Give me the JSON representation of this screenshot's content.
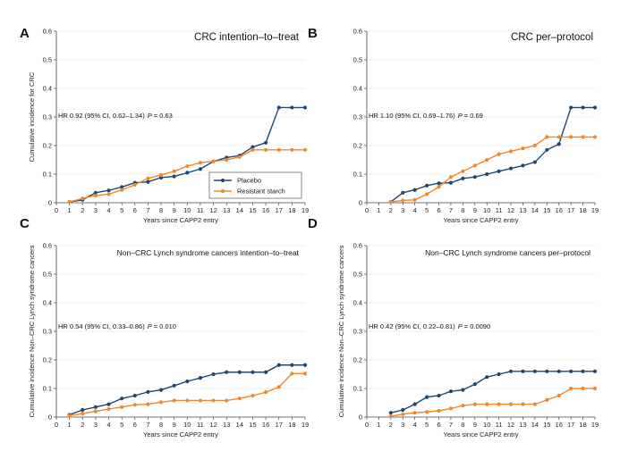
{
  "legend": {
    "placebo": "Placebo",
    "starch": "Resistant starch"
  },
  "colors": {
    "placebo": "#23466b",
    "starch": "#f0882f",
    "grid": "#e9e9e9",
    "axis": "#444444"
  },
  "chart_data": [
    {
      "type": "line",
      "letter": "A",
      "title": "CRC intention–to–treat",
      "ylabel": "Cumulative incidence for CRC",
      "xlabel": "Years since CAPP2 entry",
      "hr_text": "HR 0.92 (95% CI, 0.62–1.34)",
      "p_label": "P",
      "p_value": "= 0.63",
      "x_ticks": [
        "0",
        "1",
        "2",
        "3",
        "4",
        "5",
        "6",
        "7",
        "8",
        "9",
        "10",
        "11",
        "12",
        "13",
        "14",
        "15",
        "16",
        "17",
        "18",
        "19"
      ],
      "y_ticks": [
        "0",
        "0.1",
        "0.2",
        "0.3",
        "0.4",
        "0.5",
        "0.6"
      ],
      "xlim": [
        0,
        19
      ],
      "ylim": [
        0,
        0.6
      ],
      "series": [
        {
          "name": "Placebo",
          "x": [
            1,
            2,
            3,
            4,
            5,
            6,
            7,
            8,
            9,
            10,
            11,
            12,
            13,
            14,
            15,
            16,
            17,
            18,
            19
          ],
          "y": [
            0.003,
            0.01,
            0.035,
            0.043,
            0.055,
            0.07,
            0.073,
            0.088,
            0.092,
            0.105,
            0.118,
            0.145,
            0.158,
            0.165,
            0.195,
            0.21,
            0.333,
            0.333,
            0.333
          ]
        },
        {
          "name": "Resistant starch",
          "x": [
            1,
            2,
            3,
            4,
            5,
            6,
            7,
            8,
            9,
            10,
            11,
            12,
            13,
            14,
            15,
            16,
            17,
            18,
            19
          ],
          "y": [
            0.003,
            0.015,
            0.025,
            0.03,
            0.045,
            0.063,
            0.085,
            0.097,
            0.11,
            0.128,
            0.14,
            0.145,
            0.15,
            0.16,
            0.185,
            0.185,
            0.185,
            0.185,
            0.185
          ]
        }
      ]
    },
    {
      "type": "line",
      "letter": "B",
      "title": "CRC per–protocol",
      "ylabel": "",
      "xlabel": "Years since CAPP2 entry",
      "hr_text": "HR 1.10 (95% CI, 0.69–1.76)",
      "p_label": "P",
      "p_value": "= 0.69",
      "x_ticks": [
        "0",
        "1",
        "2",
        "3",
        "4",
        "5",
        "6",
        "7",
        "8",
        "9",
        "10",
        "11",
        "12",
        "13",
        "14",
        "15",
        "16",
        "17",
        "18",
        "19"
      ],
      "y_ticks": [
        "0",
        "0.1",
        "0.2",
        "0.3",
        "0.4",
        "0.5",
        "0.6"
      ],
      "xlim": [
        0,
        19
      ],
      "ylim": [
        0,
        0.6
      ],
      "series": [
        {
          "name": "Placebo",
          "x": [
            2,
            3,
            4,
            5,
            6,
            7,
            8,
            9,
            10,
            11,
            12,
            13,
            14,
            15,
            16,
            17,
            18,
            19
          ],
          "y": [
            0.003,
            0.035,
            0.045,
            0.06,
            0.068,
            0.07,
            0.085,
            0.09,
            0.1,
            0.11,
            0.12,
            0.13,
            0.142,
            0.185,
            0.205,
            0.333,
            0.333,
            0.333
          ]
        },
        {
          "name": "Resistant starch",
          "x": [
            2,
            3,
            4,
            5,
            6,
            7,
            8,
            9,
            10,
            11,
            12,
            13,
            14,
            15,
            16,
            17,
            18,
            19
          ],
          "y": [
            0.003,
            0.008,
            0.01,
            0.03,
            0.055,
            0.09,
            0.11,
            0.13,
            0.15,
            0.17,
            0.18,
            0.19,
            0.2,
            0.23,
            0.23,
            0.23,
            0.23,
            0.23
          ]
        }
      ]
    },
    {
      "type": "line",
      "letter": "C",
      "title": "Non–CRC Lynch syndrome cancers intention–to–treat",
      "ylabel": "Cumulative incidence Non–CRC Lynch syndrome cancers",
      "xlabel": "Years since CAPP2 entry",
      "hr_text": "HR 0.54 (95% CI, 0.33–0.86)",
      "p_label": "P",
      "p_value": "= 0.010",
      "x_ticks": [
        "0",
        "1",
        "2",
        "3",
        "4",
        "5",
        "6",
        "7",
        "8",
        "9",
        "10",
        "11",
        "12",
        "13",
        "14",
        "15",
        "16",
        "17",
        "18",
        "19"
      ],
      "y_ticks": [
        "0",
        "0.1",
        "0.2",
        "0.3",
        "0.4",
        "0.5",
        "0.6"
      ],
      "xlim": [
        0,
        19
      ],
      "ylim": [
        0,
        0.6
      ],
      "series": [
        {
          "name": "Placebo",
          "x": [
            1,
            2,
            3,
            4,
            5,
            6,
            7,
            8,
            9,
            10,
            11,
            12,
            13,
            14,
            15,
            16,
            17,
            18,
            19
          ],
          "y": [
            0.008,
            0.025,
            0.035,
            0.045,
            0.065,
            0.075,
            0.088,
            0.095,
            0.11,
            0.125,
            0.137,
            0.15,
            0.157,
            0.157,
            0.157,
            0.157,
            0.182,
            0.182,
            0.182
          ]
        },
        {
          "name": "Resistant starch",
          "x": [
            1,
            2,
            3,
            4,
            5,
            6,
            7,
            8,
            9,
            10,
            11,
            12,
            13,
            14,
            15,
            16,
            17,
            18,
            19
          ],
          "y": [
            0.005,
            0.012,
            0.02,
            0.028,
            0.035,
            0.043,
            0.045,
            0.052,
            0.058,
            0.058,
            0.058,
            0.058,
            0.058,
            0.065,
            0.075,
            0.087,
            0.105,
            0.152,
            0.152
          ]
        }
      ]
    },
    {
      "type": "line",
      "letter": "D",
      "title": "Non–CRC Lynch syndrome cancers per–protocol",
      "ylabel": "Cumulative incidence Non–CRC Lynch syndrome cancers",
      "xlabel": "Years since CAPP2 entry",
      "hr_text": "HR 0.42 (95% CI, 0.22–0.81)",
      "p_label": "P",
      "p_value": "= 0.0090",
      "x_ticks": [
        "0",
        "1",
        "2",
        "3",
        "4",
        "5",
        "6",
        "7",
        "8",
        "9",
        "10",
        "11",
        "12",
        "13",
        "14",
        "15",
        "16",
        "17",
        "18",
        "19"
      ],
      "y_ticks": [
        "0",
        "0.1",
        "0.2",
        "0.3",
        "0.4",
        "0.5",
        "0.6"
      ],
      "xlim": [
        0,
        19
      ],
      "ylim": [
        0,
        0.6
      ],
      "series": [
        {
          "name": "Placebo",
          "x": [
            2,
            3,
            4,
            5,
            6,
            7,
            8,
            9,
            10,
            11,
            12,
            13,
            14,
            15,
            16,
            17,
            18,
            19
          ],
          "y": [
            0.015,
            0.025,
            0.045,
            0.07,
            0.075,
            0.09,
            0.095,
            0.115,
            0.14,
            0.15,
            0.16,
            0.16,
            0.16,
            0.16,
            0.16,
            0.16,
            0.16,
            0.16
          ]
        },
        {
          "name": "Resistant starch",
          "x": [
            2,
            3,
            4,
            5,
            6,
            7,
            8,
            9,
            10,
            11,
            12,
            13,
            14,
            15,
            16,
            17,
            18,
            19
          ],
          "y": [
            0.003,
            0.01,
            0.015,
            0.018,
            0.022,
            0.03,
            0.04,
            0.045,
            0.045,
            0.045,
            0.045,
            0.045,
            0.045,
            0.06,
            0.075,
            0.1,
            0.1,
            0.1
          ]
        }
      ]
    }
  ]
}
